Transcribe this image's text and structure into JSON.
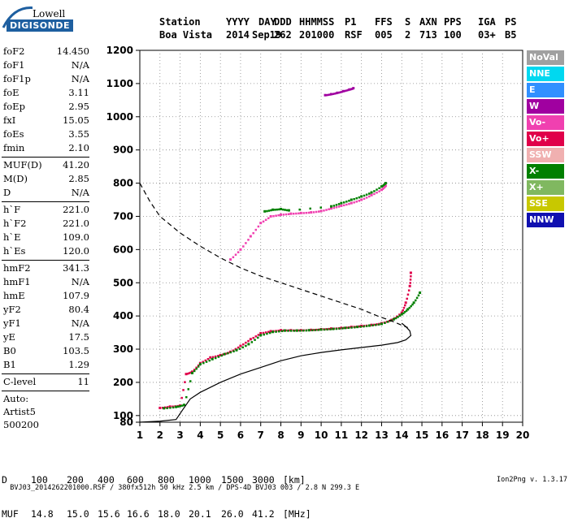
{
  "logo": {
    "line1": "Lowell",
    "line2": "DIGISONDE"
  },
  "header": {
    "labels": [
      "Station",
      "YYYY",
      "DAY",
      "DDD",
      "HHMMSS",
      "P1",
      "FFS",
      "S",
      "AXN",
      "PPS",
      "IGA",
      "PS"
    ],
    "values": [
      "Boa Vista",
      "2014",
      "Sep19",
      "262",
      "201000",
      "RSF",
      "005",
      "2",
      "713",
      "100",
      "03+",
      "B5"
    ]
  },
  "params": {
    "group1": [
      {
        "name": "foF2",
        "value": "14.450"
      },
      {
        "name": "foF1",
        "value": "N/A"
      },
      {
        "name": "foF1p",
        "value": "N/A"
      },
      {
        "name": "foE",
        "value": "3.11"
      },
      {
        "name": "foEp",
        "value": "2.95"
      },
      {
        "name": "fxI",
        "value": "15.05"
      },
      {
        "name": "foEs",
        "value": "3.55"
      },
      {
        "name": "fmin",
        "value": "2.10"
      }
    ],
    "group2": [
      {
        "name": "MUF(D)",
        "value": "41.20"
      },
      {
        "name": "M(D)",
        "value": "2.85"
      },
      {
        "name": "D",
        "value": "N/A"
      }
    ],
    "group3": [
      {
        "name": "h`F",
        "value": "221.0"
      },
      {
        "name": "h`F2",
        "value": "221.0"
      },
      {
        "name": "h`E",
        "value": "109.0"
      },
      {
        "name": "h`Es",
        "value": "120.0"
      }
    ],
    "group4": [
      {
        "name": "hmF2",
        "value": "341.3"
      },
      {
        "name": "hmF1",
        "value": "N/A"
      },
      {
        "name": "hmE",
        "value": "107.9"
      },
      {
        "name": "yF2",
        "value": "80.4"
      },
      {
        "name": "yF1",
        "value": "N/A"
      },
      {
        "name": "yE",
        "value": "17.5"
      },
      {
        "name": "B0",
        "value": "103.5"
      },
      {
        "name": "B1",
        "value": "1.29"
      }
    ],
    "group5": [
      {
        "name": "C-level",
        "value": "11"
      }
    ],
    "autoscale": [
      "Auto:",
      "Artist5",
      "500200"
    ]
  },
  "legend": [
    {
      "label": "NoVal",
      "color": "#a0a0a0"
    },
    {
      "label": "NNE",
      "color": "#00d8f0"
    },
    {
      "label": "E",
      "color": "#3090ff"
    },
    {
      "label": "W",
      "color": "#a000a0"
    },
    {
      "label": "Vo-",
      "color": "#f040b0"
    },
    {
      "label": "Vo+",
      "color": "#e0004a"
    },
    {
      "label": "SSW",
      "color": "#f0b0b0"
    },
    {
      "label": "X-",
      "color": "#008000"
    },
    {
      "label": "X+",
      "color": "#80b860"
    },
    {
      "label": "SSE",
      "color": "#c8c800"
    },
    {
      "label": "NNW",
      "color": "#1010b0"
    }
  ],
  "muf_table": {
    "d_label": "D",
    "d_values": [
      "100",
      "200",
      "400",
      "600",
      "800",
      "1000",
      "1500",
      "3000",
      "[km]"
    ],
    "muf_label": "MUF",
    "muf_values": [
      "14.8",
      "15.0",
      "15.6",
      "16.6",
      "18.0",
      "20.1",
      "26.0",
      "41.2",
      "[MHz]"
    ]
  },
  "footer": {
    "left": "BVJ03_2014262201000.RSF / 380fx512h 50 kHz 2.5 km / DPS-4D BVJ03 003 / 2.8 N 299.3 E",
    "right": "Ion2Png v. 1.3.17"
  },
  "chart_data": {
    "type": "scatter",
    "title": "",
    "xlabel": "",
    "ylabel": "",
    "xlim": [
      1,
      20
    ],
    "ylim": [
      80,
      1200
    ],
    "x_ticks": [
      1,
      2,
      3,
      4,
      5,
      6,
      7,
      8,
      9,
      10,
      11,
      12,
      13,
      14,
      15,
      16,
      17,
      18,
      19,
      20
    ],
    "y_ticks": [
      80,
      100,
      200,
      300,
      400,
      500,
      600,
      700,
      800,
      900,
      1000,
      1100,
      1200
    ],
    "grid": "dotted",
    "series": [
      {
        "name": "Vo-",
        "kind": "echo",
        "color": "#e0004a",
        "x": [
          2.0,
          2.5,
          3.0,
          3.3,
          3.6,
          4.0,
          4.5,
          5.0,
          5.5,
          6.0,
          6.5,
          7.0,
          7.5,
          8.0,
          8.5,
          9.0,
          9.5,
          10.0,
          10.5,
          11.0,
          11.5,
          12.0,
          12.5,
          13.0,
          13.5,
          14.0,
          14.2,
          14.4,
          14.45
        ],
        "y": [
          123,
          127,
          130,
          225,
          232,
          258,
          275,
          282,
          292,
          310,
          330,
          348,
          354,
          357,
          357,
          357,
          358,
          360,
          362,
          364,
          367,
          370,
          373,
          378,
          388,
          410,
          440,
          490,
          530
        ]
      },
      {
        "name": "X+",
        "kind": "echo",
        "color": "#008000",
        "x": [
          2.2,
          2.8,
          3.2,
          3.6,
          4.0,
          4.6,
          5.2,
          5.8,
          6.4,
          7.0,
          7.6,
          8.2,
          8.8,
          9.4,
          10.0,
          10.6,
          11.2,
          11.8,
          12.4,
          13.0,
          13.6,
          14.0,
          14.3,
          14.6,
          14.9
        ],
        "y": [
          122,
          126,
          132,
          228,
          255,
          270,
          285,
          297,
          315,
          342,
          352,
          356,
          356,
          357,
          359,
          361,
          364,
          367,
          371,
          376,
          390,
          405,
          420,
          440,
          470
        ]
      },
      {
        "name": "Vo- (2F)",
        "kind": "echo",
        "color": "#f040b0",
        "x": [
          5.5,
          6.0,
          6.5,
          7.0,
          7.5,
          8.0,
          8.5,
          9.0,
          9.5,
          10.0,
          10.5,
          11.0,
          11.5,
          12.0,
          12.5,
          13.0,
          13.2
        ],
        "y": [
          570,
          600,
          640,
          680,
          700,
          705,
          708,
          710,
          712,
          716,
          724,
          732,
          740,
          750,
          764,
          780,
          792
        ]
      },
      {
        "name": "X+ (2F)",
        "kind": "echo",
        "color": "#008000",
        "x": [
          7.2,
          7.6,
          8.0,
          8.4,
          10.5,
          11.0,
          11.5,
          12.0,
          12.5,
          13.0,
          13.2
        ],
        "y": [
          715,
          720,
          722,
          718,
          730,
          740,
          750,
          760,
          772,
          790,
          800
        ]
      },
      {
        "name": "Es",
        "kind": "echo",
        "color": "#a000a0",
        "x": [
          10.2,
          10.5,
          10.8,
          11.1,
          11.4,
          11.6
        ],
        "y": [
          1065,
          1068,
          1072,
          1077,
          1082,
          1086
        ]
      },
      {
        "name": "profile",
        "kind": "solid",
        "color": "#000000",
        "x": [
          1.0,
          2.0,
          2.8,
          3.1,
          3.5,
          4.0,
          5.0,
          6.0,
          7.0,
          8.0,
          9.0,
          10.0,
          11.0,
          12.0,
          13.0,
          13.8,
          14.2,
          14.45,
          14.4,
          14.2,
          14.0
        ],
        "y": [
          80,
          83,
          88,
          115,
          150,
          170,
          200,
          225,
          245,
          265,
          280,
          290,
          298,
          305,
          312,
          320,
          328,
          341,
          355,
          368,
          378
        ]
      },
      {
        "name": "MUF curve",
        "kind": "dashed",
        "color": "#000000",
        "x": [
          1.0,
          1.5,
          2.0,
          3.0,
          4.0,
          5.0,
          6.0,
          7.0,
          8.0,
          9.0,
          10.0,
          11.0,
          12.0,
          12.8,
          13.5,
          14.0,
          14.3
        ],
        "y": [
          800,
          745,
          700,
          650,
          610,
          575,
          545,
          520,
          500,
          480,
          460,
          440,
          420,
          400,
          385,
          372,
          365
        ]
      }
    ]
  }
}
